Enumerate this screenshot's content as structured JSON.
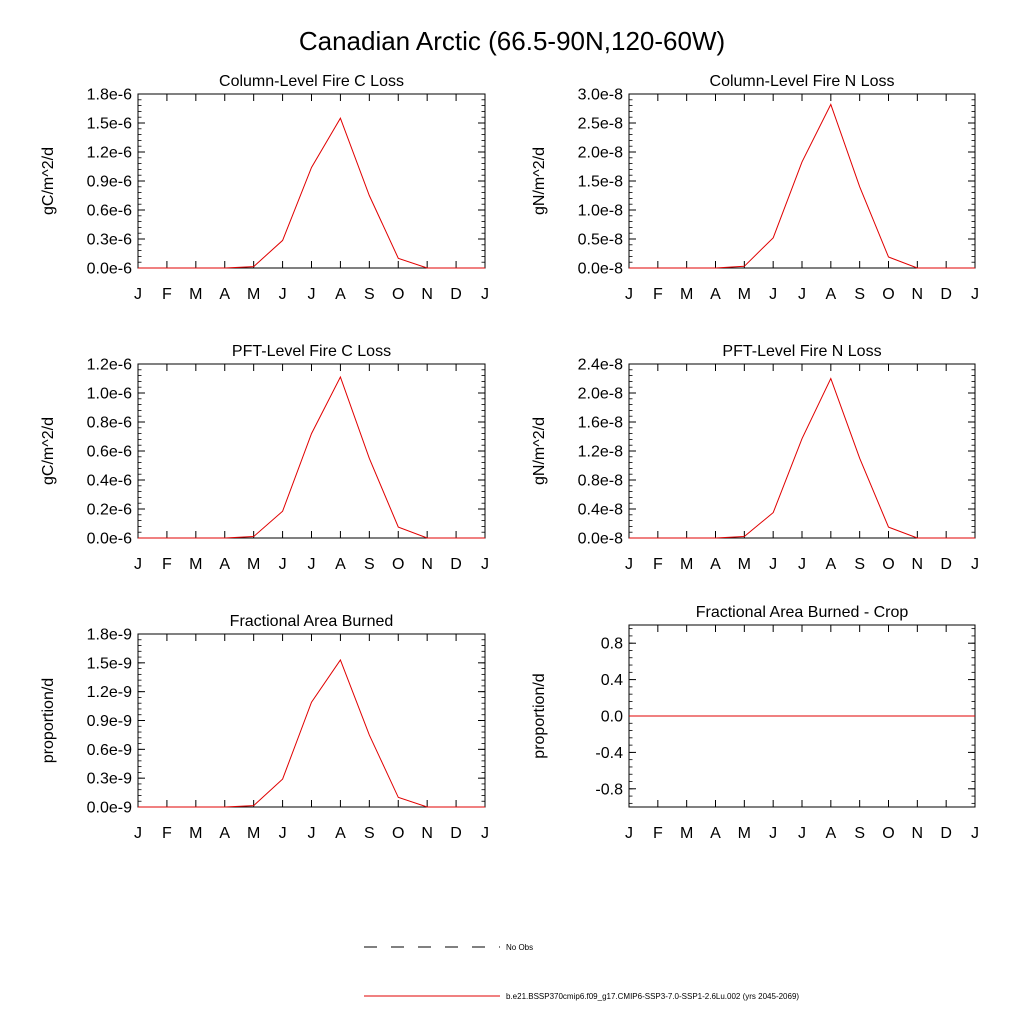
{
  "figure": {
    "title": "Canadian Arctic (66.5-90N,120-60W)"
  },
  "months": [
    "J",
    "F",
    "M",
    "A",
    "M",
    "J",
    "J",
    "A",
    "S",
    "O",
    "N",
    "D",
    "J"
  ],
  "legend": {
    "entries": [
      {
        "label": "No Obs",
        "style": "dashed",
        "color": "#000000"
      },
      {
        "label": "b.e21.BSSP370cmip6.f09_g17.CMIP6-SSP3-7.0-SSP1-2.6Lu.002 (yrs 2045-2069)",
        "style": "solid",
        "color": "#e00000"
      }
    ]
  },
  "chart_data": [
    {
      "type": "line",
      "title": "Column-Level Fire C Loss",
      "ylabel": "gC/m^2/d",
      "ylim": [
        0,
        1.8e-06
      ],
      "yticks": [
        0,
        3e-07,
        6e-07,
        9e-07,
        1.2e-06,
        1.5e-06,
        1.8e-06
      ],
      "yticklabels": [
        "0.0e-6",
        "0.3e-6",
        "0.6e-6",
        "0.9e-6",
        "1.2e-6",
        "1.5e-6",
        "1.8e-6"
      ],
      "series": [
        {
          "color": "#e00000",
          "values": [
            0,
            0,
            0,
            0,
            1.5e-08,
            2.85e-07,
            1.04e-06,
            1.55e-06,
            7.5e-07,
            1e-07,
            0,
            0,
            0
          ]
        }
      ]
    },
    {
      "type": "line",
      "title": "Column-Level Fire N Loss",
      "ylabel": "gN/m^2/d",
      "ylim": [
        0,
        3e-08
      ],
      "yticks": [
        0,
        5e-09,
        1e-08,
        1.5e-08,
        2e-08,
        2.5e-08,
        3e-08
      ],
      "yticklabels": [
        "0.0e-8",
        "0.5e-8",
        "1.0e-8",
        "1.5e-8",
        "2.0e-8",
        "2.5e-8",
        "3.0e-8"
      ],
      "series": [
        {
          "color": "#e00000",
          "values": [
            0,
            0,
            0,
            0,
            3e-10,
            5.2e-09,
            1.83e-08,
            2.82e-08,
            1.4e-08,
            1.9e-09,
            0,
            0,
            0
          ]
        }
      ]
    },
    {
      "type": "line",
      "title": "PFT-Level Fire C Loss",
      "ylabel": "gC/m^2/d",
      "ylim": [
        0,
        1.2e-06
      ],
      "yticks": [
        0,
        2e-07,
        4e-07,
        6e-07,
        8e-07,
        1e-06,
        1.2e-06
      ],
      "yticklabels": [
        "0.0e-6",
        "0.2e-6",
        "0.4e-6",
        "0.6e-6",
        "0.8e-6",
        "1.0e-6",
        "1.2e-6"
      ],
      "series": [
        {
          "color": "#e00000",
          "values": [
            0,
            0,
            0,
            0,
            1e-08,
            1.85e-07,
            7.2e-07,
            1.11e-06,
            5.5e-07,
            7.5e-08,
            0,
            0,
            0
          ]
        }
      ]
    },
    {
      "type": "line",
      "title": "PFT-Level Fire N Loss",
      "ylabel": "gN/m^2/d",
      "ylim": [
        0,
        2.4e-08
      ],
      "yticks": [
        0,
        4e-09,
        8e-09,
        1.2e-08,
        1.6e-08,
        2e-08,
        2.4e-08
      ],
      "yticklabels": [
        "0.0e-8",
        "0.4e-8",
        "0.8e-8",
        "1.2e-8",
        "1.6e-8",
        "2.0e-8",
        "2.4e-8"
      ],
      "series": [
        {
          "color": "#e00000",
          "values": [
            0,
            0,
            0,
            0,
            2e-10,
            3.5e-09,
            1.37e-08,
            2.2e-08,
            1.1e-08,
            1.5e-09,
            0,
            0,
            0
          ]
        }
      ]
    },
    {
      "type": "line",
      "title": "Fractional Area Burned",
      "ylabel": "proportion/d",
      "ylim": [
        0,
        1.8e-09
      ],
      "yticks": [
        0,
        3e-10,
        6e-10,
        9e-10,
        1.2e-09,
        1.5e-09,
        1.8e-09
      ],
      "yticklabels": [
        "0.0e-9",
        "0.3e-9",
        "0.6e-9",
        "0.9e-9",
        "1.2e-9",
        "1.5e-9",
        "1.8e-9"
      ],
      "series": [
        {
          "color": "#e00000",
          "values": [
            0,
            0,
            0,
            0,
            1.5e-11,
            2.9e-10,
            1.09e-09,
            1.53e-09,
            7.5e-10,
            1e-10,
            0,
            0,
            0
          ]
        }
      ]
    },
    {
      "type": "line",
      "title": "Fractional Area Burned - Crop",
      "ylabel": "proportion/d",
      "ylim": [
        -1.0,
        1.0
      ],
      "yticks": [
        -0.8,
        -0.4,
        0.0,
        0.4,
        0.8
      ],
      "yticklabels": [
        "-0.8",
        "-0.4",
        "0.0",
        "0.4",
        "0.8"
      ],
      "series": [
        {
          "color": "#e00000",
          "values": [
            0,
            0,
            0,
            0,
            0,
            0,
            0,
            0,
            0,
            0,
            0,
            0,
            0
          ]
        }
      ]
    }
  ]
}
